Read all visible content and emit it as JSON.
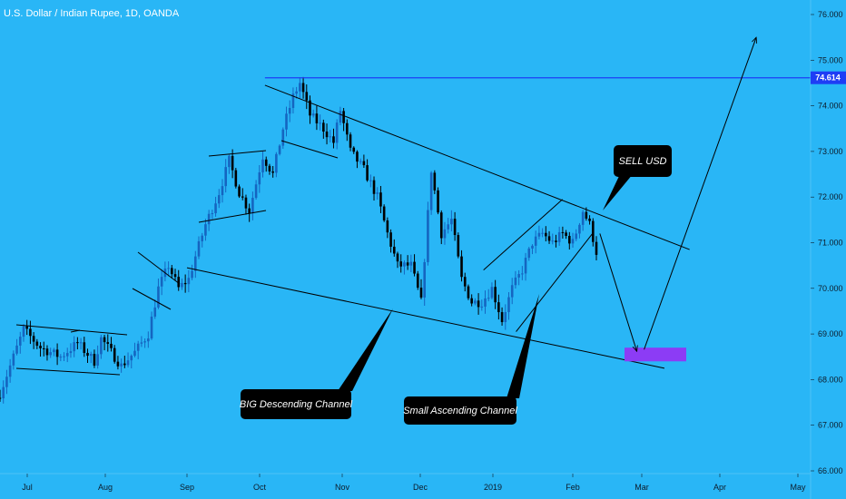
{
  "header": {
    "title": "U.S. Dollar / Indian Rupee, 1D, OANDA"
  },
  "price_tag": {
    "value": "74.614",
    "color": "#1e3df5"
  },
  "annotations": {
    "big_channel": "BIG Descending Channel",
    "small_channel": "Small Ascending Channel",
    "sell": "SELL USD"
  },
  "colors": {
    "background": "#29b6f6",
    "bull": "#1565c0",
    "bear": "#000000",
    "target_box": "#8c3cf5",
    "resistance": "#1e3df5"
  },
  "chart_data": {
    "type": "candlestick",
    "title": "U.S. Dollar / Indian Rupee, 1D, OANDA",
    "ylim": [
      66.0,
      76.0
    ],
    "y_ticks": [
      "76.000",
      "75.000",
      "74.000",
      "73.000",
      "72.000",
      "71.000",
      "70.000",
      "69.000",
      "68.000",
      "67.000",
      "66.000"
    ],
    "x_ticks": [
      "Jul",
      "Aug",
      "Sep",
      "Oct",
      "Nov",
      "Dec",
      "2019",
      "Feb",
      "Mar",
      "Apr",
      "May"
    ],
    "grid": false,
    "current_price": 74.614,
    "path_points": [
      [
        0,
        67.7
      ],
      [
        4,
        68.5
      ],
      [
        7,
        69.1
      ],
      [
        12,
        68.7
      ],
      [
        18,
        68.5
      ],
      [
        23,
        68.8
      ],
      [
        28,
        68.4
      ],
      [
        30,
        68.9
      ],
      [
        33,
        68.6
      ],
      [
        36,
        68.3
      ],
      [
        40,
        68.6
      ],
      [
        44,
        69.0
      ],
      [
        47,
        70.0
      ],
      [
        50,
        70.5
      ],
      [
        53,
        70.0
      ],
      [
        56,
        70.2
      ],
      [
        58,
        70.7
      ],
      [
        61,
        71.4
      ],
      [
        65,
        72.1
      ],
      [
        68,
        72.8
      ],
      [
        71,
        72.1
      ],
      [
        74,
        71.7
      ],
      [
        78,
        72.9
      ],
      [
        81,
        72.5
      ],
      [
        84,
        73.5
      ],
      [
        87,
        74.2
      ],
      [
        89,
        74.5
      ],
      [
        92,
        73.8
      ],
      [
        96,
        73.5
      ],
      [
        99,
        73.2
      ],
      [
        101,
        73.9
      ],
      [
        104,
        73.0
      ],
      [
        108,
        72.6
      ],
      [
        112,
        72.0
      ],
      [
        115,
        71.2
      ],
      [
        118,
        70.5
      ],
      [
        122,
        70.5
      ],
      [
        125,
        69.7
      ],
      [
        128,
        72.6
      ],
      [
        131,
        71.2
      ],
      [
        134,
        71.5
      ],
      [
        137,
        70.2
      ],
      [
        140,
        69.7
      ],
      [
        143,
        69.7
      ],
      [
        146,
        70.0
      ],
      [
        149,
        69.3
      ],
      [
        152,
        70.0
      ],
      [
        155,
        70.4
      ],
      [
        158,
        71.0
      ],
      [
        161,
        71.2
      ],
      [
        164,
        71.0
      ],
      [
        167,
        71.2
      ],
      [
        170,
        71.0
      ],
      [
        173,
        71.7
      ],
      [
        175,
        71.4
      ],
      [
        177,
        70.8
      ]
    ],
    "path_len": 178,
    "path_x_range": [
      0,
      657
    ],
    "trendlines": [
      {
        "name": "big-channel-upper",
        "points": [
          [
            "2018-10-03",
            74.45
          ],
          [
            "2019-03-20",
            70.85
          ]
        ]
      },
      {
        "name": "big-channel-lower",
        "points": [
          [
            "2018-09-01",
            70.45
          ],
          [
            "2019-03-10",
            68.25
          ]
        ]
      },
      {
        "name": "small-channel-upper",
        "points": [
          [
            "2018-12-28",
            70.4
          ],
          [
            "2019-01-28",
            71.95
          ]
        ]
      },
      {
        "name": "small-channel-lower",
        "points": [
          [
            "2019-01-10",
            69.05
          ],
          [
            "2019-02-09",
            71.2
          ]
        ]
      },
      {
        "name": "resistance",
        "points": [
          [
            "2018-10-03",
            74.614
          ],
          [
            "2019-05-31",
            74.614
          ]
        ]
      }
    ],
    "target_zone": [
      68.4,
      68.7
    ],
    "projection": [
      [
        "2019-02-12",
        71.2
      ],
      [
        "2019-02-27",
        68.5
      ],
      [
        "2019-04-15",
        75.5
      ]
    ]
  }
}
